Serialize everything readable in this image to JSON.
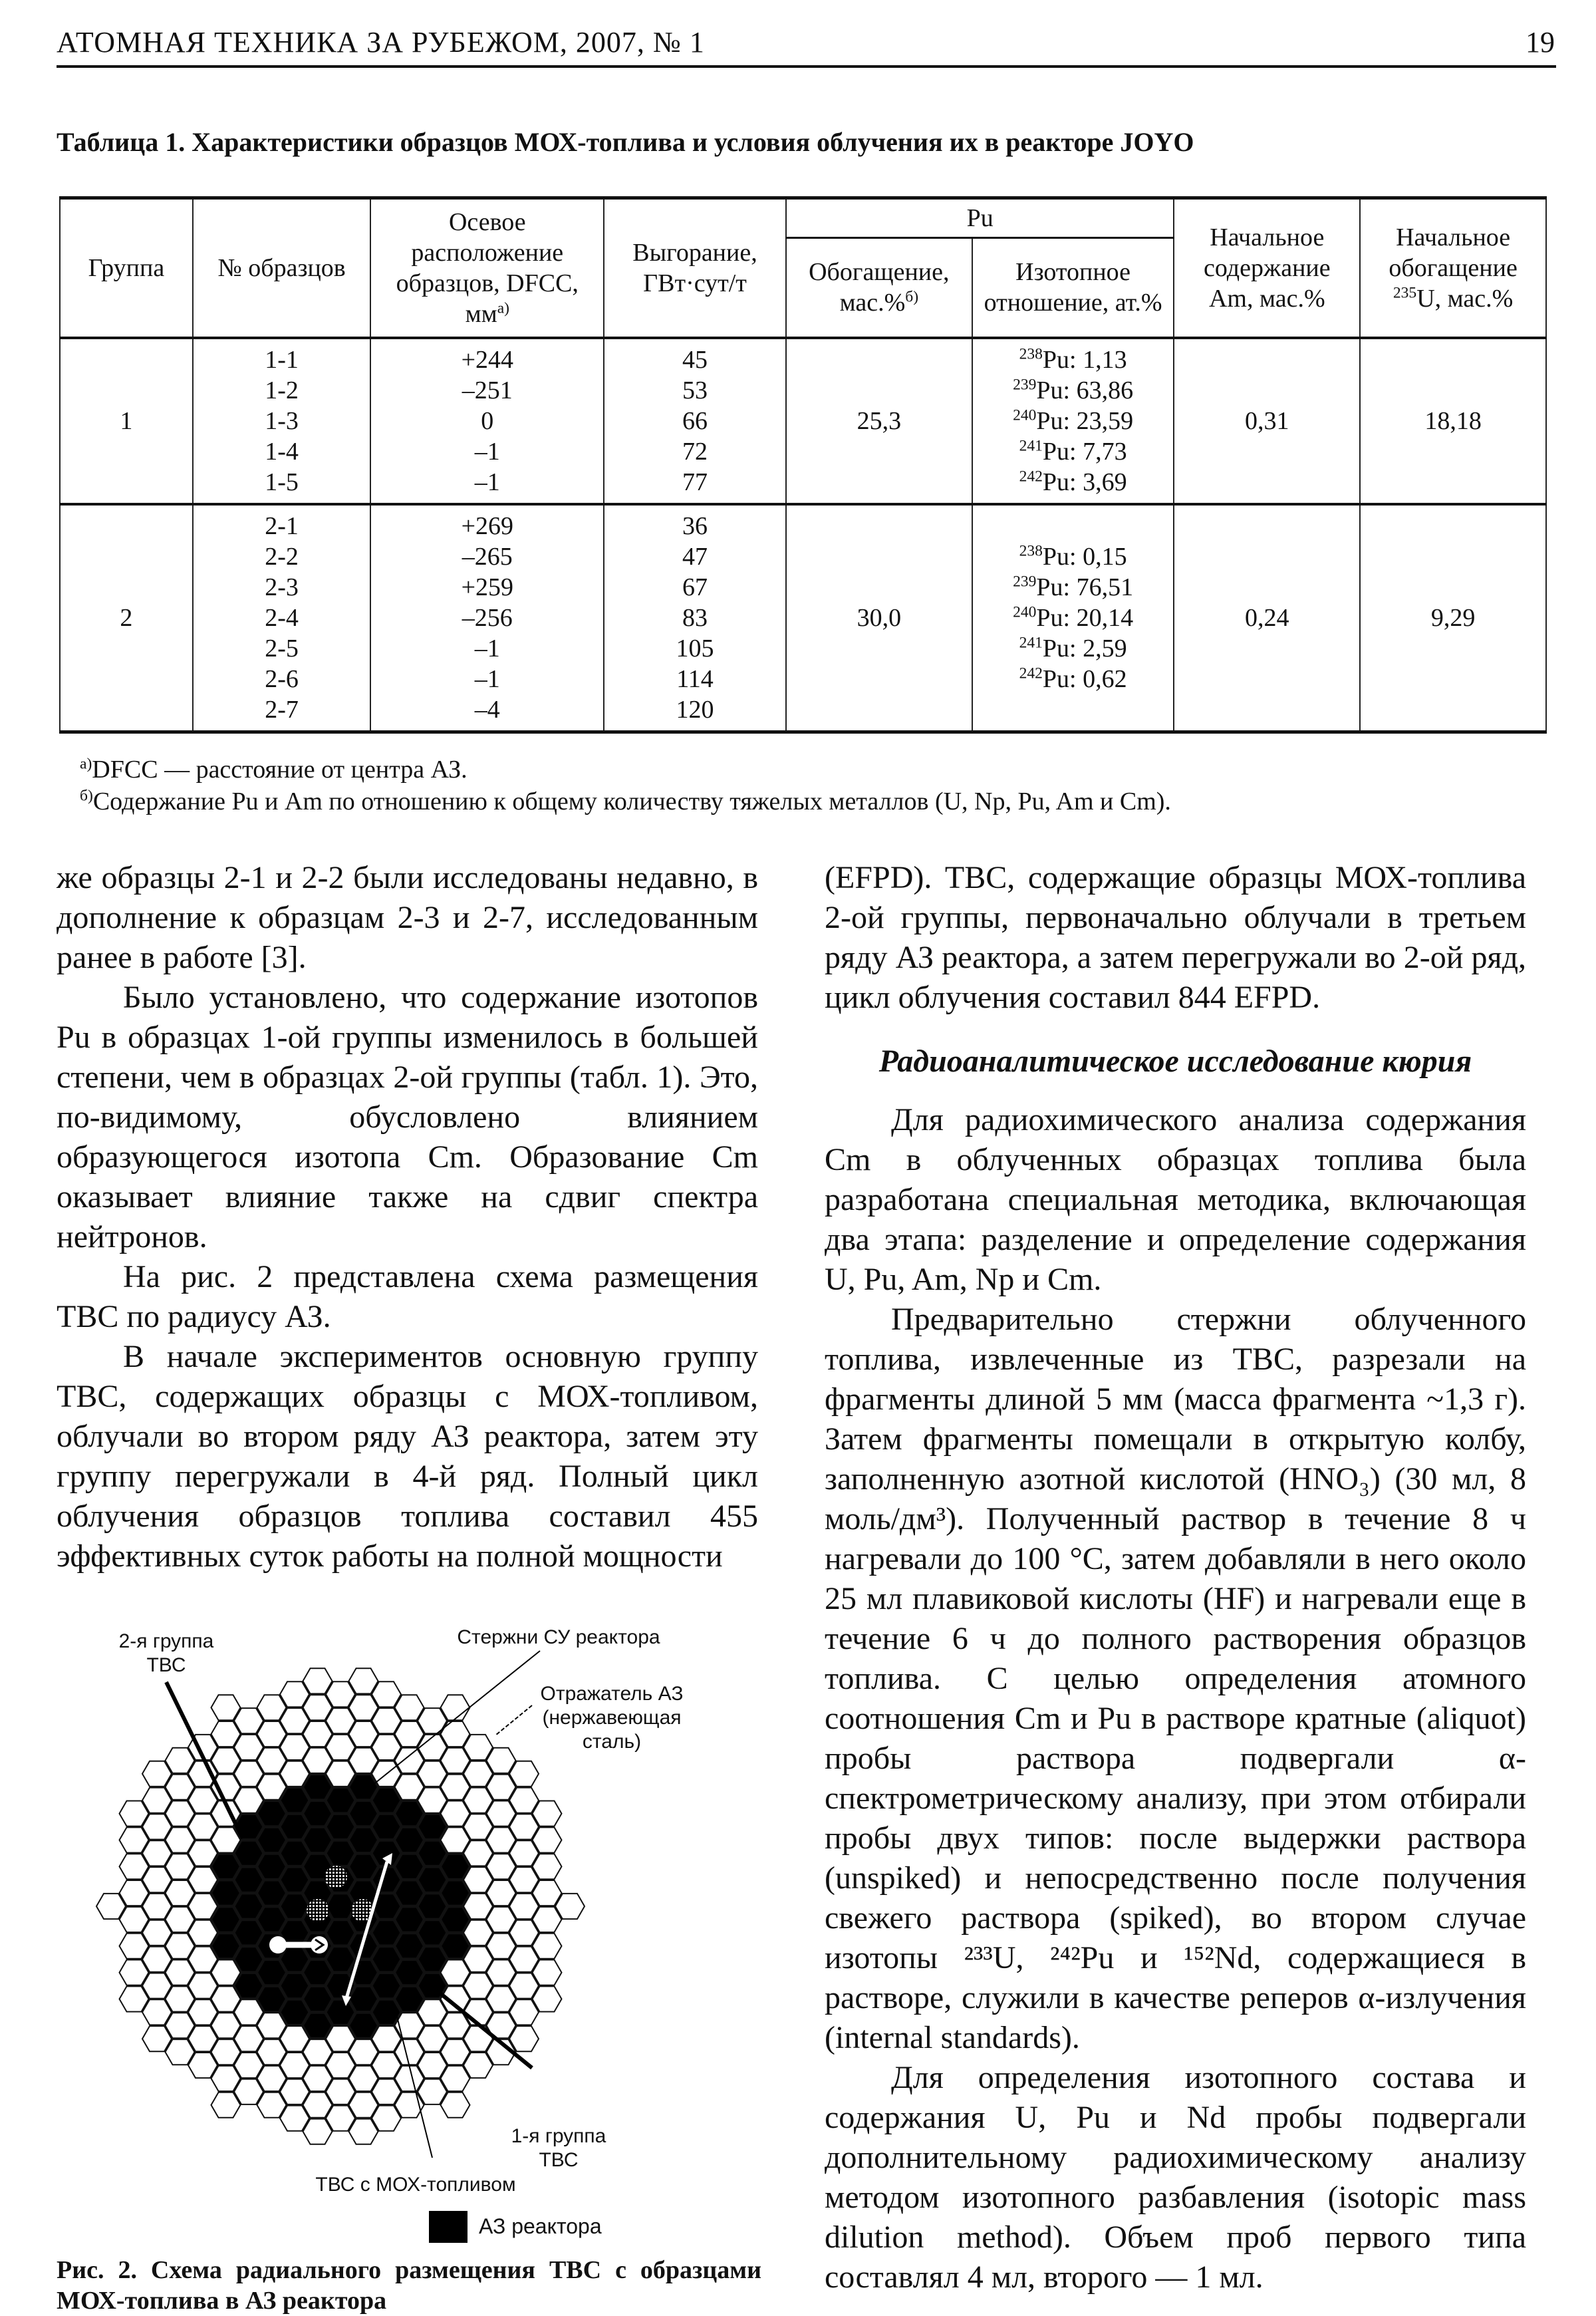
{
  "header": {
    "journal": "АТОМНАЯ ТЕХНИКА ЗА РУБЕЖОМ, 2007, № 1",
    "page": "19"
  },
  "table": {
    "caption": "Таблица 1. Характеристики образцов МОХ-топлива и условия облучения их в реакторе JOYO",
    "headers": {
      "group": "Группа",
      "sample": "№ образцов",
      "axial": "Осевое расположение образцов, DFCC, мм",
      "axial_note": "а)",
      "burnup": "Выгорание, ГВт·сут/т",
      "pu": "Pu",
      "enrich": "Обогащение, мас.%",
      "enrich_note": "б)",
      "isotopic": "Изотопное отношение, ат.%",
      "am": "Начальное содержание Am, мас.%",
      "u235_pre": "Начальное обогащение",
      "u235_sup": "235",
      "u235_post": "U, мас.%"
    },
    "groups": [
      {
        "group": "1",
        "enrichment": "25,3",
        "am": "0,31",
        "u235": "18,18",
        "samples": [
          [
            "1-1",
            "+244",
            "45"
          ],
          [
            "1-2",
            "–251",
            "53"
          ],
          [
            "1-3",
            "0",
            "66"
          ],
          [
            "1-4",
            "–1",
            "72"
          ],
          [
            "1-5",
            "–1",
            "77"
          ]
        ],
        "isotopes": [
          [
            "238",
            "Pu: 1,13"
          ],
          [
            "239",
            "Pu: 63,86"
          ],
          [
            "240",
            "Pu: 23,59"
          ],
          [
            "241",
            "Pu: 7,73"
          ],
          [
            "242",
            "Pu: 3,69"
          ]
        ]
      },
      {
        "group": "2",
        "enrichment": "30,0",
        "am": "0,24",
        "u235": "9,29",
        "samples": [
          [
            "2-1",
            "+269",
            "36"
          ],
          [
            "2-2",
            "–265",
            "47"
          ],
          [
            "2-3",
            "+259",
            "67"
          ],
          [
            "2-4",
            "–256",
            "83"
          ],
          [
            "2-5",
            "–1",
            "105"
          ],
          [
            "2-6",
            "–1",
            "114"
          ],
          [
            "2-7",
            "–4",
            "120"
          ]
        ],
        "isotopes": [
          [
            "238",
            "Pu: 0,15"
          ],
          [
            "239",
            "Pu: 76,51"
          ],
          [
            "240",
            "Pu: 20,14"
          ],
          [
            "241",
            "Pu: 2,59"
          ],
          [
            "242",
            "Pu: 0,62"
          ]
        ]
      }
    ],
    "footnotes": [
      {
        "mark": "а)",
        "text": "DFCC — расстояние от центра АЗ."
      },
      {
        "mark": "б)",
        "text": "Содержание Pu и Am по отношению к общему количеству тяжелых металлов (U, Np, Pu, Am и Cm)."
      }
    ]
  },
  "left_column": [
    "же образцы 2-1 и 2-2 были исследованы недавно, в дополнение к образцам 2-3 и 2-7, исследованным ранее в работе [3].",
    "Было установлено, что содержание изотопов Pu в образцах 1-ой группы изменилось в большей степени, чем в образцах 2-ой группы (табл. 1). Это, по-видимому, обусловлено влиянием образующегося изотопа Cm. Образование Cm оказывает влияние также на сдвиг спектра нейтронов.",
    "На рис. 2 представлена схема размещения ТВС по радиусу АЗ.",
    "В начале экспериментов основную группу ТВС, содержащих образцы с МОХ-топливом, облучали во втором ряду АЗ реактора, затем эту группу перегружали в 4-й ряд. Полный цикл облучения образцов топлива составил 455 эффективных суток работы на полной мощности"
  ],
  "right_column": {
    "continuation": "(EFPD). ТВС, содержащие образцы МОХ-топлива 2-ой группы, первоначально облучали в третьем ряду АЗ реактора, а затем перегружали во 2-ой ряд, цикл облучения составил 844 EFPD.",
    "heading": "Радиоаналитическое исследование кюрия",
    "paragraphs": [
      "Для радиохимического анализа содержания Cm в облученных образцах топлива была разработана специальная методика, включающая два этапа: разделение и определение содержания U, Pu, Am, Np и Cm.",
      "Предварительно стержни облученного топлива, извлеченные из ТВС, разрезали на фрагменты длиной 5 мм (масса фрагмента ~1,3 г). Затем фрагменты помещали в открытую колбу, заполненную азотной кислотой (HNO₃) (30 мл, 8 моль/дм³). Полученный раствор в течение 8 ч нагревали до 100 °С, затем добавляли в него около 25 мл плавиковой кислоты (HF) и нагревали еще в течение 6 ч до полного растворения образцов топлива. С целью определения атомного соотношения Cm и Pu в растворе кратные (aliquot) пробы раствора подвергали α-спектрометрическому анализу, при этом отбирали пробы двух типов: после выдержки раствора (unspiked) и непосредственно после получения свежего раствора (spiked), во втором случае изотопы ²³³U, ²⁴²Pu и ¹⁵²Nd, содержащиеся в растворе, служили в качестве реперов α-излучения (internal standards).",
      "Для определения изотопного состава и содержания U, Pu и Nd пробы подвергали дополнительному радиохимическому анализу методом изотопного разбавления (isotopic mass dilution method). Объем проб первого типа составлял 4 мл, второго — 1 мл."
    ]
  },
  "figure": {
    "labels": {
      "group2": "2-я группа ТВС",
      "control_rods": "Стержни СУ реактора",
      "reflector": "Отражатель АЗ (нержавеющая сталь)",
      "group1": "1-я группа ТВС",
      "mox": "ТВС с МОХ-топливом",
      "legend_core": "АЗ реактора"
    },
    "caption": "Рис. 2. Схема радиального размещения ТВС с образцами МОХ-топлива в АЗ реактора",
    "colors": {
      "core": "#000000",
      "reflector": "#ffffff",
      "outline": "#111111"
    }
  }
}
